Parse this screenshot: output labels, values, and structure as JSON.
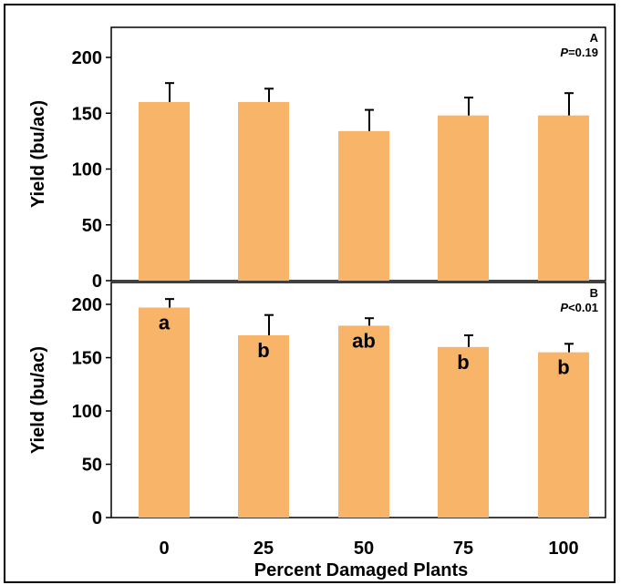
{
  "chart_data": {
    "type": "bar",
    "bar_color": "#F8B469",
    "xlabel": "Percent Damaged Plants",
    "categories": [
      "0",
      "25",
      "50",
      "75",
      "100"
    ],
    "panels": [
      {
        "panel_label": "A",
        "p_prefix": "P",
        "p_value": "=0.19",
        "ylabel": "Yield (bu/ac)",
        "ylim": [
          0,
          220
        ],
        "yticks": [
          "0",
          "50",
          "100",
          "150",
          "200"
        ],
        "values": [
          160,
          160,
          134,
          148,
          148
        ],
        "errors": [
          17,
          12,
          19,
          16,
          20
        ],
        "letters": []
      },
      {
        "panel_label": "B",
        "p_prefix": "P",
        "p_value": "<0.01",
        "ylabel": "Yield (bu/ac)",
        "ylim": [
          0,
          220
        ],
        "yticks": [
          "0",
          "50",
          "100",
          "150",
          "200"
        ],
        "values": [
          197,
          171,
          180,
          160,
          155
        ],
        "errors": [
          8,
          19,
          7,
          11,
          8
        ],
        "letters": [
          "a",
          "b",
          "ab",
          "b",
          "b"
        ]
      }
    ]
  }
}
